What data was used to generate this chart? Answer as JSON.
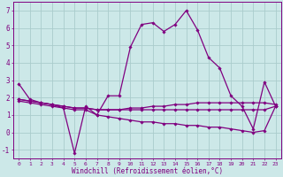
{
  "xlabel": "Windchill (Refroidissement éolien,°C)",
  "ylabel": "",
  "bg_color": "#cce8e8",
  "grid_color": "#aacccc",
  "line_color": "#800080",
  "xlim": [
    -0.5,
    23.5
  ],
  "ylim": [
    -1.5,
    7.5
  ],
  "xticks": [
    0,
    1,
    2,
    3,
    4,
    5,
    6,
    7,
    8,
    9,
    10,
    11,
    12,
    13,
    14,
    15,
    16,
    17,
    18,
    19,
    20,
    21,
    22,
    23
  ],
  "yticks": [
    -1,
    0,
    1,
    2,
    3,
    4,
    5,
    6,
    7
  ],
  "lines": [
    {
      "x": [
        0,
        1,
        2,
        3,
        4,
        5,
        6,
        7,
        8,
        9,
        10,
        11,
        12,
        13,
        14,
        15,
        16,
        17,
        18,
        19,
        20,
        21,
        22,
        23
      ],
      "y": [
        2.8,
        1.9,
        1.7,
        1.6,
        1.4,
        -1.2,
        1.5,
        1.0,
        2.1,
        2.1,
        4.9,
        6.2,
        6.3,
        5.8,
        6.2,
        7.0,
        5.9,
        4.3,
        3.7,
        2.1,
        1.5,
        0.2,
        2.9,
        1.5
      ]
    },
    {
      "x": [
        0,
        1,
        2,
        3,
        4,
        5,
        6,
        7,
        8,
        9,
        10,
        11,
        12,
        13,
        14,
        15,
        16,
        17,
        18,
        19,
        20,
        21,
        22,
        23
      ],
      "y": [
        1.9,
        1.8,
        1.7,
        1.6,
        1.5,
        1.4,
        1.4,
        1.3,
        1.3,
        1.3,
        1.4,
        1.4,
        1.5,
        1.5,
        1.6,
        1.6,
        1.7,
        1.7,
        1.7,
        1.7,
        1.7,
        1.7,
        1.7,
        1.6
      ]
    },
    {
      "x": [
        0,
        1,
        2,
        3,
        4,
        5,
        6,
        7,
        8,
        9,
        10,
        11,
        12,
        13,
        14,
        15,
        16,
        17,
        18,
        19,
        20,
        21,
        22,
        23
      ],
      "y": [
        1.9,
        1.8,
        1.7,
        1.6,
        1.5,
        1.4,
        1.4,
        1.3,
        1.3,
        1.3,
        1.3,
        1.3,
        1.3,
        1.3,
        1.3,
        1.3,
        1.3,
        1.3,
        1.3,
        1.3,
        1.3,
        1.3,
        1.3,
        1.5
      ]
    },
    {
      "x": [
        0,
        1,
        2,
        3,
        4,
        5,
        6,
        7,
        8,
        9,
        10,
        11,
        12,
        13,
        14,
        15,
        16,
        17,
        18,
        19,
        20,
        21,
        22,
        23
      ],
      "y": [
        1.8,
        1.7,
        1.6,
        1.5,
        1.4,
        1.3,
        1.3,
        1.0,
        0.9,
        0.8,
        0.7,
        0.6,
        0.6,
        0.5,
        0.5,
        0.4,
        0.4,
        0.3,
        0.3,
        0.2,
        0.1,
        0.0,
        0.1,
        1.5
      ]
    }
  ],
  "figsize": [
    3.2,
    2.0
  ],
  "dpi": 100
}
